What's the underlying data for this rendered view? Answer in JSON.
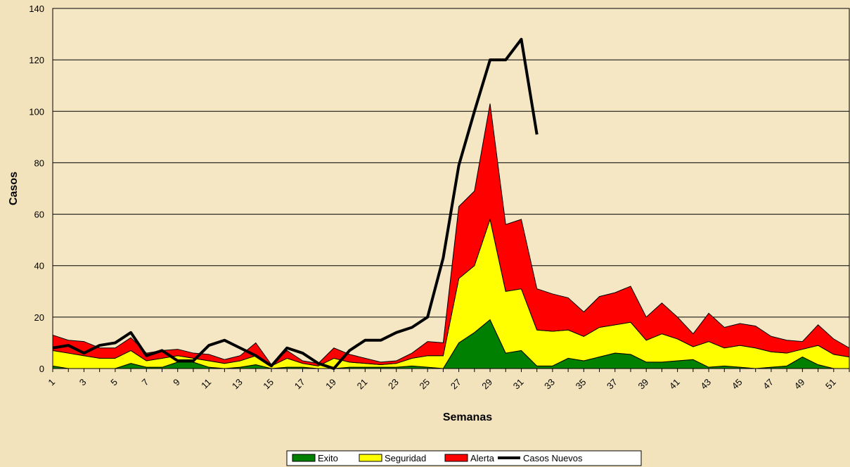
{
  "chart_data": {
    "type": "area",
    "x_label": "Semanas",
    "y_label": "Casos",
    "categories": [
      1,
      null,
      3,
      null,
      5,
      null,
      7,
      null,
      9,
      null,
      11,
      null,
      13,
      null,
      15,
      null,
      17,
      null,
      19,
      null,
      21,
      null,
      23,
      null,
      25,
      null,
      27,
      null,
      29,
      null,
      31,
      null,
      33,
      null,
      35,
      null,
      37,
      null,
      39,
      null,
      41,
      null,
      43,
      null,
      45,
      null,
      47,
      null,
      49,
      null,
      51,
      null
    ],
    "ylim": [
      0,
      140
    ],
    "yticks": [
      0,
      20,
      40,
      60,
      80,
      100,
      120,
      140
    ],
    "grid": true,
    "stacked": true,
    "legend": "bottom",
    "series": [
      {
        "name": "Exito",
        "color": "#008000",
        "values": [
          1,
          0,
          0,
          0,
          0,
          2,
          0.5,
          0.5,
          2.5,
          2.5,
          0.5,
          0,
          0.5,
          1.5,
          0,
          0.5,
          0.5,
          0,
          0,
          0.5,
          0.5,
          0.5,
          0.5,
          1,
          0.5,
          0,
          10,
          14,
          19,
          6,
          7,
          1,
          1,
          4,
          3,
          4.5,
          6,
          5.5,
          2.5,
          2.5,
          3,
          3.5,
          0.5,
          1,
          0.5,
          0,
          0.5,
          1,
          4.5,
          1.5,
          0,
          0
        ]
      },
      {
        "name": "Seguridad",
        "color": "#ffff00",
        "values": [
          6,
          6,
          5,
          4,
          4,
          5,
          2.5,
          3.5,
          2.5,
          1.5,
          2.5,
          2,
          2.5,
          3.5,
          1,
          3.5,
          1.5,
          1,
          4,
          2,
          1.5,
          1,
          1.5,
          3,
          4.5,
          5,
          25,
          26,
          39,
          24,
          24,
          14,
          13.5,
          11,
          9.5,
          11.5,
          11,
          12.5,
          8.5,
          11,
          8.5,
          5,
          10,
          7,
          8.5,
          8,
          6,
          5,
          3,
          7.5,
          5.5,
          4.5
        ]
      },
      {
        "name": "Alerta",
        "color": "#ff0000",
        "values": [
          6,
          5,
          5.5,
          4,
          4,
          5,
          3,
          3,
          2.5,
          2,
          2.5,
          1.5,
          2,
          5,
          0.5,
          3,
          1,
          1,
          4,
          3,
          2,
          1,
          1,
          2,
          5.5,
          5,
          28,
          29,
          45,
          26,
          27,
          16,
          14.5,
          12.5,
          9.5,
          12,
          12.5,
          14,
          9,
          12,
          8.5,
          5,
          11,
          8,
          8.5,
          8.5,
          6,
          5,
          3,
          8,
          6,
          3.5
        ]
      },
      {
        "name": "Casos Nuevos",
        "color": "#000000",
        "type": "line",
        "values": [
          8,
          9,
          6,
          9,
          10,
          14,
          5,
          7,
          3,
          3,
          9,
          11,
          8,
          5,
          1,
          8,
          6,
          2,
          0,
          7,
          11,
          11,
          14,
          16,
          20,
          43,
          79,
          100,
          120,
          120,
          128,
          91,
          null,
          null,
          null,
          null,
          null,
          null,
          null,
          null,
          null,
          null,
          null,
          null,
          null,
          null,
          null,
          null,
          null,
          null,
          null,
          null
        ]
      }
    ]
  }
}
